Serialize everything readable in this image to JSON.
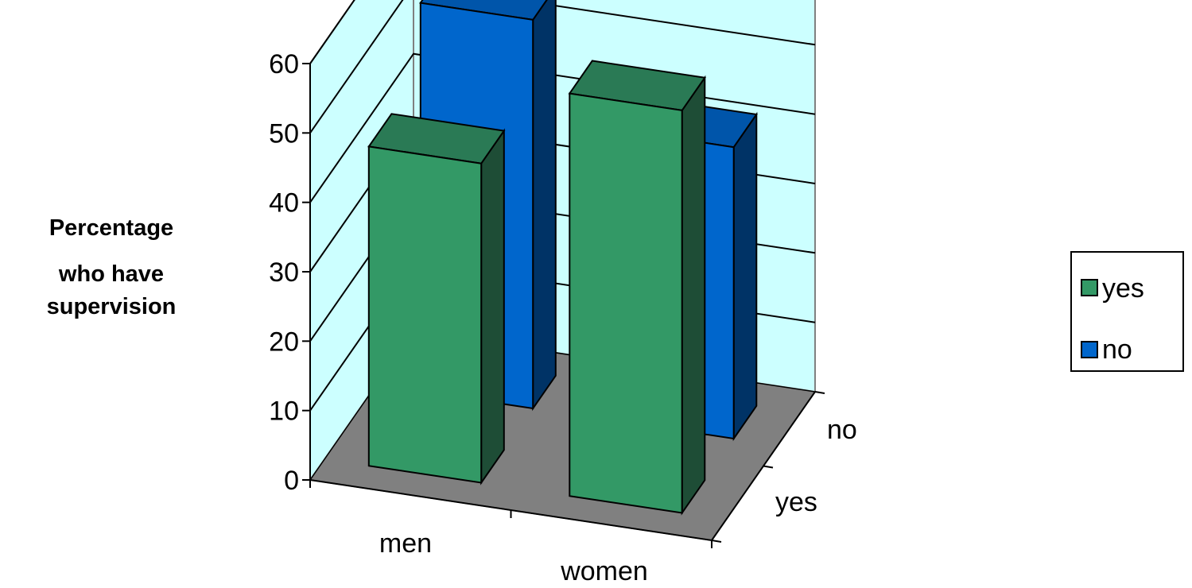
{
  "chart_data": {
    "type": "bar",
    "title": "",
    "ylabel": "Percentage who have supervision",
    "ylabel_lines": [
      "Percentage",
      "who have",
      "supervision"
    ],
    "ylim": [
      0,
      60
    ],
    "yticks": [
      0,
      10,
      20,
      30,
      40,
      50,
      60
    ],
    "ytick_labels": [
      "0",
      "10",
      "20",
      "30",
      "40",
      "50",
      "60"
    ],
    "categories": [
      "men",
      "women"
    ],
    "depth_categories": [
      "yes",
      "no"
    ],
    "series": [
      {
        "name": "yes",
        "values": [
          46,
          58
        ]
      },
      {
        "name": "no",
        "values": [
          56,
          42
        ]
      }
    ],
    "colors": {
      "yes": {
        "front": "#339966",
        "side": "#1E4D36",
        "top": "#2A7A55"
      },
      "no": {
        "front": "#0066CC",
        "side": "#003366",
        "top": "#0055AA"
      },
      "wall": "#CCFFFF",
      "floor": "#808080",
      "gridline": "#000000"
    },
    "legend": {
      "position": "right",
      "entries": [
        "yes",
        "no"
      ]
    },
    "grid": true,
    "projection": "3d"
  }
}
